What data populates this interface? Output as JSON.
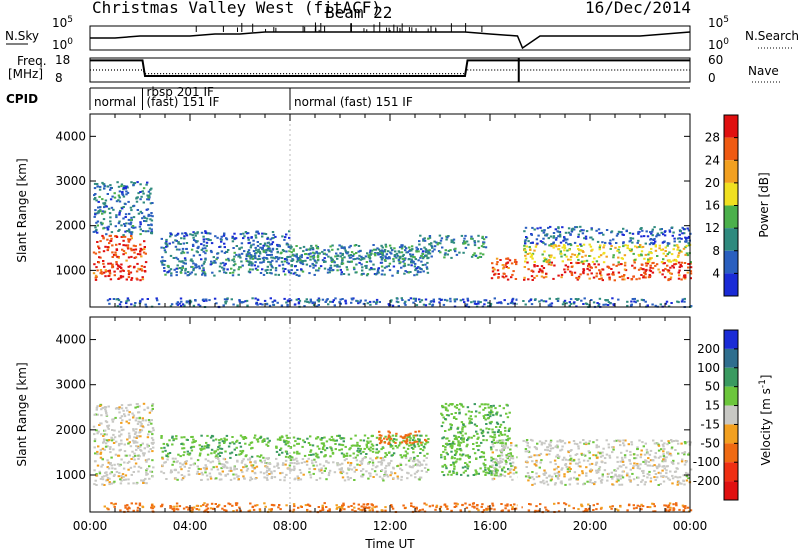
{
  "header": {
    "station": "Christmas Valley West (fitACF)",
    "beam": "Beam 22",
    "date": "16/Dec/2014"
  },
  "chart_data": [
    {
      "type": "line",
      "panel": "noise",
      "left_label": "N.Sky",
      "right_label": "N.Search",
      "left_ticks": [
        "10^5",
        "10^0"
      ],
      "right_ticks": [
        "10^5",
        "10^0"
      ],
      "series": [
        {
          "name": "N.Sky",
          "style": "solid",
          "x_hours": [
            0,
            1,
            2,
            3,
            4,
            5,
            6,
            7,
            8,
            9,
            10,
            11,
            12,
            13,
            14,
            15,
            16,
            17.1,
            17.3,
            18,
            19,
            20,
            21,
            22,
            23,
            24
          ],
          "values": [
            5,
            5,
            6,
            6,
            6,
            7,
            7,
            8,
            8,
            8,
            8,
            8,
            8,
            8,
            8,
            8,
            7,
            6,
            0,
            6,
            6,
            6,
            6,
            6,
            7,
            8
          ]
        }
      ],
      "x_ticks": [
        "00:00",
        "04:00",
        "08:00",
        "12:00",
        "16:00",
        "20:00",
        "00:00"
      ]
    },
    {
      "type": "line",
      "panel": "frequency",
      "left_label": "Freq. [MHz]",
      "right_label": "Nave",
      "left_ticks": [
        "18",
        "8"
      ],
      "right_ticks": [
        "60",
        "0"
      ],
      "series": [
        {
          "name": "Freq.",
          "style": "solid",
          "x_hours": [
            0,
            2.1,
            2.2,
            15.0,
            15.1,
            17.1,
            17.2,
            24
          ],
          "values": [
            17,
            17,
            10.5,
            10.5,
            17,
            17,
            17,
            17
          ]
        },
        {
          "name": "Nave",
          "style": "dotted",
          "x_hours": [
            0,
            2.1,
            2.2,
            15.0,
            15.1,
            17.1,
            17.3,
            24
          ],
          "values": [
            30,
            30,
            21,
            21,
            30,
            30,
            30,
            30
          ]
        }
      ]
    },
    {
      "type": "table",
      "panel": "cpid",
      "label": "CPID",
      "segments": [
        {
          "start_h": 0,
          "text1": "normal",
          "text2": ""
        },
        {
          "start_h": 2.1,
          "text1": "rbsp 201 IF",
          "text2": "(fast) 151 IF"
        },
        {
          "start_h": 8.0,
          "text1": "normal (fast) 151 IF",
          "text2": ""
        }
      ]
    },
    {
      "type": "heatmap",
      "panel": "power",
      "ylabel": "Slant Range [km]",
      "yticks": [
        1000,
        2000,
        3000,
        4000
      ],
      "ylim": [
        180,
        4500
      ],
      "xlim_hours": [
        0,
        24
      ],
      "colorbar": {
        "label": "Power [dB]",
        "ticks": [
          4,
          8,
          12,
          16,
          20,
          24,
          28
        ],
        "range": [
          0,
          32
        ],
        "colors": [
          "#1a2bd6",
          "#2a5fbf",
          "#2f8a7e",
          "#4bb04b",
          "#f0e020",
          "#f2a020",
          "#ef5a12",
          "#e01010"
        ]
      },
      "regions": [
        {
          "x_hours": [
            0.1,
            2.2
          ],
          "range_km": [
            800,
            1800
          ],
          "power_db": 28
        },
        {
          "x_hours": [
            0.1,
            2.5
          ],
          "range_km": [
            1800,
            3000
          ],
          "power_db": 8
        },
        {
          "x_hours": [
            2.8,
            8.0
          ],
          "range_km": [
            1500,
            1900
          ],
          "power_db": 6
        },
        {
          "x_hours": [
            2.8,
            13.5
          ],
          "range_km": [
            900,
            1500
          ],
          "power_db": 8
        },
        {
          "x_hours": [
            6.0,
            13.0
          ],
          "range_km": [
            1200,
            1600
          ],
          "power_db": 10
        },
        {
          "x_hours": [
            13.0,
            15.8
          ],
          "range_km": [
            1300,
            1800
          ],
          "power_db": 10
        },
        {
          "x_hours": [
            16.0,
            17.1
          ],
          "range_km": [
            800,
            1300
          ],
          "power_db": 28
        },
        {
          "x_hours": [
            17.3,
            24.0
          ],
          "range_km": [
            800,
            1200
          ],
          "power_db": 28
        },
        {
          "x_hours": [
            17.3,
            24.0
          ],
          "range_km": [
            1200,
            1600
          ],
          "power_db": 18
        },
        {
          "x_hours": [
            17.3,
            24.0
          ],
          "range_km": [
            1600,
            2000
          ],
          "power_db": 6
        },
        {
          "x_hours": [
            0.5,
            24.0
          ],
          "range_km": [
            200,
            400
          ],
          "power_db": 6
        }
      ]
    },
    {
      "type": "heatmap",
      "panel": "velocity",
      "ylabel": "Slant Range [km]",
      "yticks": [
        1000,
        2000,
        3000,
        4000
      ],
      "ylim": [
        180,
        4500
      ],
      "xlim_hours": [
        0,
        24
      ],
      "xlabel": "Time UT",
      "x_ticks": [
        "00:00",
        "04:00",
        "08:00",
        "12:00",
        "16:00",
        "20:00",
        "00:00"
      ],
      "colorbar": {
        "label": "Velocity [m s^-1]",
        "ticks": [
          200,
          100,
          50,
          15,
          -15,
          -50,
          -100,
          -200
        ],
        "colors": [
          "#1a2bd6",
          "#2f6e8e",
          "#3a9a60",
          "#6cc63c",
          "#c8c8c4",
          "#f2a020",
          "#ef6a12",
          "#ef2f12",
          "#e01010"
        ]
      },
      "regions": [
        {
          "x_hours": [
            0.1,
            2.5
          ],
          "range_km": [
            800,
            2600
          ],
          "velocity": 0
        },
        {
          "x_hours": [
            2.8,
            13.5
          ],
          "range_km": [
            1400,
            1900
          ],
          "velocity": 40
        },
        {
          "x_hours": [
            2.8,
            13.5
          ],
          "range_km": [
            900,
            1400
          ],
          "velocity": 0
        },
        {
          "x_hours": [
            11.5,
            13.5
          ],
          "range_km": [
            1700,
            2000
          ],
          "velocity": -80
        },
        {
          "x_hours": [
            14.0,
            16.8
          ],
          "range_km": [
            1000,
            2600
          ],
          "velocity": 40
        },
        {
          "x_hours": [
            16.0,
            17.1
          ],
          "range_km": [
            900,
            1800
          ],
          "velocity": 0
        },
        {
          "x_hours": [
            17.3,
            24.0
          ],
          "range_km": [
            800,
            1800
          ],
          "velocity": 0
        },
        {
          "x_hours": [
            0.5,
            24.0
          ],
          "range_km": [
            200,
            400
          ],
          "velocity": -60
        }
      ]
    }
  ]
}
